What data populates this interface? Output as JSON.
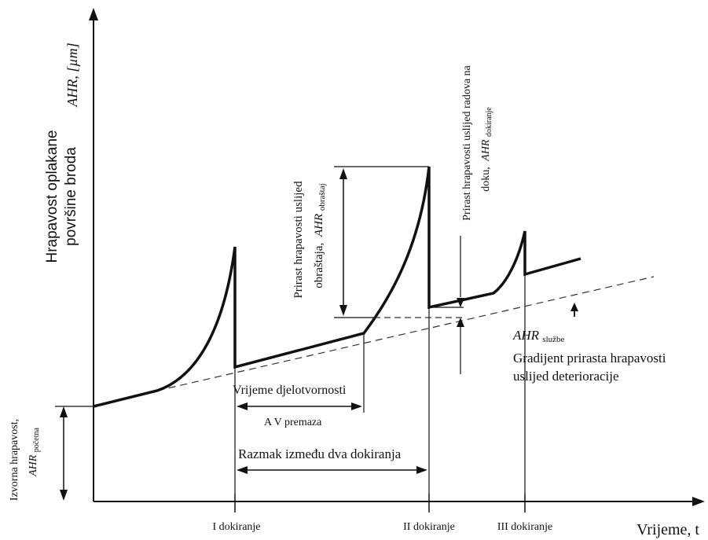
{
  "y_axis": {
    "label": "Hrapavost oplakane",
    "label2": "površine broda",
    "unit": "AHR, [µm]"
  },
  "x_axis": {
    "label": "Vrijeme, t",
    "ticks": [
      "I dokiranje",
      "II dokiranje",
      "III dokiranje"
    ]
  },
  "initial": {
    "line1": "Izvorna hrapavost,",
    "ahr": "AHR",
    "sub": "početna"
  },
  "annotations": {
    "effective_time": "Vrijeme djelotvornosti",
    "av_coating": "A V premaza",
    "docking_interval": "Razmak između dva dokiranja",
    "fouling_line1": "Prirast hrapavosti uslijed",
    "fouling_line2": "obraštaja,",
    "fouling_ahr": "AHR",
    "fouling_sub": "obraštaj",
    "dock_line1": "Prirast hrapavosti uslijed radova na",
    "dock_line2": "doku,",
    "dock_ahr": "AHR",
    "dock_sub": "dokiranje",
    "service_ahr": "AHR",
    "service_sub": "službe",
    "gradient_line1": "Gradijent prirasta hrapavosti",
    "gradient_line2": "uslijed deterioracije"
  },
  "colors": {
    "ink": "#111111"
  }
}
